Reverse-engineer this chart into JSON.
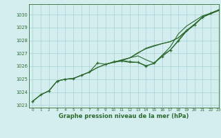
{
  "xlabel": "Graphe pression niveau de la mer (hPa)",
  "bg_color": "#d4eef0",
  "grid_color": "#a8d0d4",
  "line_color": "#2d6a2d",
  "xlim": [
    -0.5,
    23
  ],
  "ylim": [
    1022.8,
    1030.8
  ],
  "yticks": [
    1023,
    1024,
    1025,
    1026,
    1027,
    1028,
    1029,
    1030
  ],
  "xticks": [
    0,
    1,
    2,
    3,
    4,
    5,
    6,
    7,
    8,
    9,
    10,
    11,
    12,
    13,
    14,
    15,
    16,
    17,
    18,
    19,
    20,
    21,
    22,
    23
  ],
  "line_main_x": [
    0,
    1,
    2,
    3,
    4,
    5,
    6,
    7,
    8,
    9,
    10,
    11,
    12,
    13,
    14,
    15,
    16,
    17,
    18,
    19,
    20,
    21,
    22,
    23
  ],
  "line_main_y": [
    1023.3,
    1023.8,
    1024.1,
    1024.85,
    1025.0,
    1025.05,
    1025.3,
    1025.55,
    1026.25,
    1026.15,
    1026.35,
    1026.45,
    1026.35,
    1026.3,
    1026.0,
    1026.25,
    1026.75,
    1027.25,
    1028.0,
    1028.75,
    1029.2,
    1029.8,
    1030.1,
    1030.35
  ],
  "line_a_x": [
    0,
    1,
    2,
    3,
    4,
    5,
    6,
    7,
    8,
    9,
    10,
    11,
    12,
    13,
    14,
    15,
    16,
    17,
    18,
    19,
    20,
    21,
    22,
    23
  ],
  "line_a_y": [
    1023.3,
    1023.8,
    1024.1,
    1024.85,
    1025.0,
    1025.05,
    1025.3,
    1025.55,
    1025.9,
    1026.15,
    1026.3,
    1026.4,
    1026.3,
    1026.3,
    1026.05,
    1026.2,
    1026.85,
    1027.25,
    1027.95,
    1028.7,
    1029.2,
    1029.8,
    1030.05,
    1030.3
  ],
  "line_b_x": [
    0,
    1,
    2,
    3,
    4,
    5,
    6,
    7,
    8,
    9,
    10,
    11,
    12,
    13,
    14,
    15,
    16,
    17,
    18,
    19,
    20,
    21,
    22,
    23
  ],
  "line_b_y": [
    1023.3,
    1023.8,
    1024.1,
    1024.85,
    1025.0,
    1025.05,
    1025.3,
    1025.55,
    1025.9,
    1026.15,
    1026.3,
    1026.45,
    1026.65,
    1027.05,
    1027.35,
    1027.55,
    1027.75,
    1027.9,
    1028.2,
    1028.75,
    1029.25,
    1029.8,
    1030.1,
    1030.35
  ],
  "line_c_x": [
    10,
    11,
    12,
    13,
    14,
    15,
    16,
    17,
    18,
    19,
    20,
    21,
    22,
    23
  ],
  "line_c_y": [
    1026.3,
    1026.45,
    1026.65,
    1026.8,
    1026.5,
    1026.25,
    1026.85,
    1027.5,
    1028.5,
    1029.1,
    1029.5,
    1029.9,
    1030.1,
    1030.35
  ],
  "line_d_x": [
    10,
    11,
    12,
    13,
    14,
    15,
    16,
    17,
    18,
    19,
    20,
    21,
    22,
    23
  ],
  "line_d_y": [
    1026.3,
    1026.5,
    1026.65,
    1027.0,
    1027.4,
    1027.6,
    1027.75,
    1027.9,
    1028.2,
    1028.75,
    1029.25,
    1029.8,
    1030.1,
    1030.35
  ],
  "font_color": "#2d6a2d"
}
